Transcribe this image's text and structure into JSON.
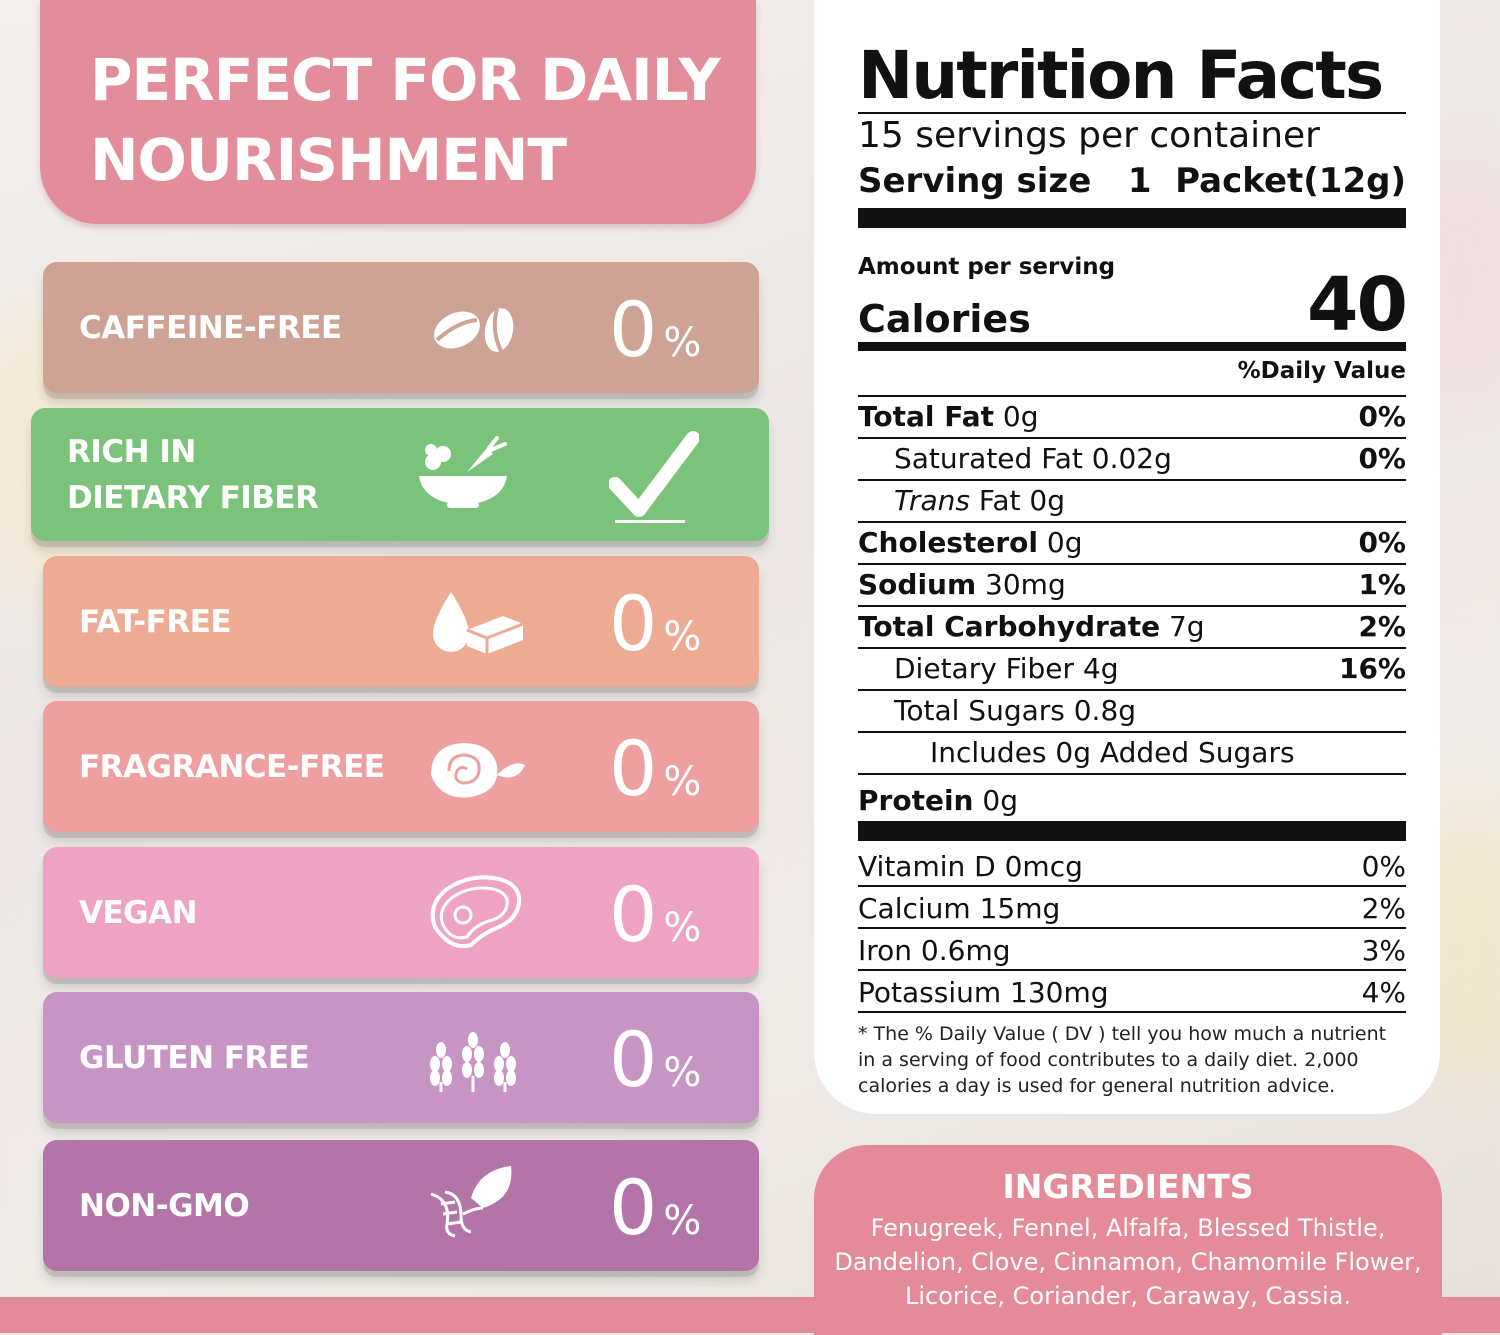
{
  "header": {
    "title": "PERFECT FOR DAILY\nNOURISHMENT"
  },
  "features": [
    {
      "label": "CAFFEINE-FREE",
      "icon": "coffee-beans-icon",
      "value": "0",
      "unit": "%",
      "color": "#cea395"
    },
    {
      "label": "RICH IN\nDIETARY FIBER",
      "icon": "salad-bowl-icon",
      "value": "check",
      "color": "#7bc27a"
    },
    {
      "label": "FAT-FREE",
      "icon": "fat-drop-butter-icon",
      "value": "0",
      "unit": "%",
      "color": "#eeab93"
    },
    {
      "label": "FRAGRANCE-FREE",
      "icon": "rose-icon",
      "value": "0",
      "unit": "%",
      "color": "#eea0a0"
    },
    {
      "label": "VEGAN",
      "icon": "meat-steak-icon",
      "value": "0",
      "unit": "%",
      "color": "#efa3c4"
    },
    {
      "label": "GLUTEN FREE",
      "icon": "wheat-icon",
      "value": "0",
      "unit": "%",
      "color": "#c795c3"
    },
    {
      "label": "NON-GMO",
      "icon": "dna-leaf-icon",
      "value": "0",
      "unit": "%",
      "color": "#b374a8"
    }
  ],
  "nutrition": {
    "title": "Nutrition Facts",
    "servings": "15 servings per container",
    "serving_size_label": "Serving size",
    "serving_size_value": "1  Packet(12g)",
    "amount_per_serving": "Amount per serving",
    "calories_label": "Calories",
    "calories_value": "40",
    "daily_value_header": "%Daily Value",
    "rows": [
      {
        "name": "Total Fat",
        "amount": " 0g",
        "dv": "0%"
      },
      {
        "name": "Saturated Fat 0.02g",
        "dv": "0%"
      },
      {
        "name_italic": "Trans",
        "name": " Fat 0g",
        "dv": ""
      },
      {
        "name": "Cholesterol",
        "amount": " 0g",
        "dv": "0%"
      },
      {
        "name": "Sodium",
        "amount": " 30mg",
        "dv": "1%"
      },
      {
        "name": "Total Carbohydrate",
        "amount": " 7g",
        "dv": "2%"
      },
      {
        "name": "Dietary Fiber 4g",
        "dv": "16%"
      },
      {
        "name": "Total Sugars 0.8g",
        "dv": ""
      },
      {
        "name": "Includes 0g Added Sugars",
        "dv": ""
      },
      {
        "name": "Protein",
        "amount": " 0g",
        "dv": ""
      }
    ],
    "vitamins": [
      {
        "name": "Vitamin D 0mcg",
        "dv": "0%"
      },
      {
        "name": "Calcium 15mg",
        "dv": "2%"
      },
      {
        "name": "Iron 0.6mg",
        "dv": "3%"
      },
      {
        "name": "Potassium 130mg",
        "dv": "4%"
      }
    ],
    "footnote": "* The % Daily Value ( DV ) tell you how much a nutrient in a serving of food contributes to a daily diet. 2,000 calories a day is used for general nutrition advice."
  },
  "ingredients": {
    "title": "INGREDIENTS",
    "text": "Fenugreek, Fennel, Alfalfa, Blessed Thistle, Dandelion, Clove, Cinnamon, Chamomile Flower, Licorice, Coriander, Caraway, Cassia."
  }
}
